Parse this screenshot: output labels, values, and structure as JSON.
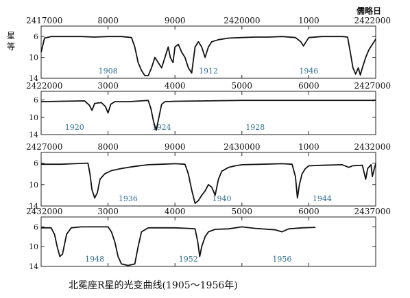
{
  "chart_data": {
    "type": "line",
    "title": "北冕座R星的光变曲线(1905～1956年)",
    "ylabel": "星等",
    "xlabel": "儒略日",
    "ylim": [
      14,
      4
    ],
    "yticks": [
      6,
      10,
      14
    ],
    "grid": false,
    "panels": [
      {
        "id": "p1",
        "xlim": [
          2417000,
          2422000
        ],
        "major_ticks": [
          {
            "x": 2417000,
            "label": "2417000"
          },
          {
            "x": 2420000,
            "label": "2420000"
          },
          {
            "x": 2422000,
            "label": "2422000"
          }
        ],
        "minor_ticks": [
          {
            "x": 2418000,
            "label": "8000"
          },
          {
            "x": 2419000,
            "label": "9000"
          },
          {
            "x": 2421000,
            "label": "1000"
          }
        ],
        "year_labels": [
          {
            "x": 2418000,
            "label": "1908"
          },
          {
            "x": 2419500,
            "label": "1912"
          },
          {
            "x": 2421000,
            "label": "1946"
          }
        ],
        "curve": [
          [
            2417000,
            9
          ],
          [
            2417050,
            6.3
          ],
          [
            2417150,
            6
          ],
          [
            2417400,
            6
          ],
          [
            2417600,
            6
          ],
          [
            2417800,
            6.1
          ],
          [
            2418000,
            6
          ],
          [
            2418200,
            6
          ],
          [
            2418350,
            6.2
          ],
          [
            2418400,
            8
          ],
          [
            2418450,
            11
          ],
          [
            2418500,
            12.5
          ],
          [
            2418550,
            13.5
          ],
          [
            2418600,
            13.5
          ],
          [
            2418650,
            12
          ],
          [
            2418700,
            10
          ],
          [
            2418750,
            11
          ],
          [
            2418800,
            12
          ],
          [
            2418850,
            10
          ],
          [
            2418900,
            8
          ],
          [
            2418930,
            10
          ],
          [
            2418970,
            11
          ],
          [
            2419000,
            8
          ],
          [
            2419050,
            7.5
          ],
          [
            2419100,
            9
          ],
          [
            2419150,
            10
          ],
          [
            2419200,
            12
          ],
          [
            2419250,
            13
          ],
          [
            2419300,
            8
          ],
          [
            2419350,
            7
          ],
          [
            2419400,
            8
          ],
          [
            2419450,
            10
          ],
          [
            2419500,
            8
          ],
          [
            2419550,
            7
          ],
          [
            2419650,
            6.6
          ],
          [
            2419800,
            6.3
          ],
          [
            2420000,
            6.2
          ],
          [
            2420200,
            6.1
          ],
          [
            2420400,
            6.1
          ],
          [
            2420600,
            6
          ],
          [
            2420800,
            6.2
          ],
          [
            2420880,
            7
          ],
          [
            2420920,
            7.8
          ],
          [
            2420960,
            7
          ],
          [
            2421000,
            6.2
          ],
          [
            2421200,
            6
          ],
          [
            2421400,
            6
          ],
          [
            2421500,
            6
          ],
          [
            2421580,
            6.1
          ],
          [
            2421620,
            9
          ],
          [
            2421660,
            12
          ],
          [
            2421700,
            13.2
          ],
          [
            2421740,
            12
          ],
          [
            2421770,
            13.4
          ],
          [
            2421800,
            12
          ],
          [
            2421850,
            10
          ],
          [
            2421900,
            8.5
          ],
          [
            2421950,
            7.5
          ],
          [
            2422000,
            6.5
          ]
        ]
      },
      {
        "id": "p2",
        "xlim": [
          2422000,
          2427000
        ],
        "major_ticks": [
          {
            "x": 2422000,
            "label": "2422000"
          },
          {
            "x": 2427000,
            "label": "2427000"
          }
        ],
        "minor_ticks": [
          {
            "x": 2423000,
            "label": "3000"
          },
          {
            "x": 2424000,
            "label": "4000"
          },
          {
            "x": 2425000,
            "label": "5000"
          },
          {
            "x": 2426000,
            "label": "6000"
          }
        ],
        "year_labels": [
          {
            "x": 2422500,
            "label": "1920"
          },
          {
            "x": 2423800,
            "label": "1924"
          },
          {
            "x": 2425200,
            "label": "1928"
          }
        ],
        "curve": [
          [
            2422000,
            6.4
          ],
          [
            2422300,
            6.3
          ],
          [
            2422650,
            6.2
          ],
          [
            2422720,
            7.2
          ],
          [
            2422760,
            8.4
          ],
          [
            2422800,
            6.8
          ],
          [
            2422900,
            6.6
          ],
          [
            2422960,
            7.5
          ],
          [
            2423000,
            9
          ],
          [
            2423040,
            7
          ],
          [
            2423100,
            6.4
          ],
          [
            2423300,
            6.4
          ],
          [
            2423500,
            6.2
          ],
          [
            2423600,
            6.1
          ],
          [
            2423640,
            8
          ],
          [
            2423680,
            11
          ],
          [
            2423720,
            13
          ],
          [
            2423760,
            10
          ],
          [
            2423800,
            7
          ],
          [
            2423850,
            6.4
          ],
          [
            2424000,
            6.3
          ],
          [
            2424500,
            6.2
          ],
          [
            2425000,
            6.1
          ],
          [
            2425500,
            6.1
          ],
          [
            2426000,
            6.1
          ],
          [
            2426500,
            6.1
          ],
          [
            2427000,
            6.1
          ]
        ]
      },
      {
        "id": "p3",
        "xlim": [
          2427000,
          2432000
        ],
        "major_ticks": [
          {
            "x": 2427000,
            "label": "2427000"
          },
          {
            "x": 2430000,
            "label": "2430000"
          },
          {
            "x": 2432000,
            "label": "2432000"
          }
        ],
        "minor_ticks": [
          {
            "x": 2428000,
            "label": "8000"
          },
          {
            "x": 2429000,
            "label": "9000"
          },
          {
            "x": 2431000,
            "label": "1000"
          }
        ],
        "year_labels": [
          {
            "x": 2428300,
            "label": "1936"
          },
          {
            "x": 2429700,
            "label": "1940"
          },
          {
            "x": 2431200,
            "label": "1944"
          }
        ],
        "curve": [
          [
            2427000,
            6.2
          ],
          [
            2427300,
            6.2
          ],
          [
            2427500,
            6.1
          ],
          [
            2427700,
            6
          ],
          [
            2427730,
            8
          ],
          [
            2427760,
            11
          ],
          [
            2427800,
            12.5
          ],
          [
            2427840,
            11.5
          ],
          [
            2427880,
            9
          ],
          [
            2427950,
            8
          ],
          [
            2428050,
            7.4
          ],
          [
            2428200,
            7
          ],
          [
            2428400,
            6.6
          ],
          [
            2428600,
            6.3
          ],
          [
            2428800,
            6.2
          ],
          [
            2429000,
            6.1
          ],
          [
            2429150,
            6.2
          ],
          [
            2429200,
            8
          ],
          [
            2429250,
            11
          ],
          [
            2429300,
            13.5
          ],
          [
            2429350,
            13
          ],
          [
            2429400,
            12
          ],
          [
            2429450,
            11.2
          ],
          [
            2429500,
            10
          ],
          [
            2429550,
            10.5
          ],
          [
            2429600,
            12
          ],
          [
            2429650,
            9
          ],
          [
            2429700,
            7.5
          ],
          [
            2429800,
            6.8
          ],
          [
            2429900,
            6.5
          ],
          [
            2430000,
            6.3
          ],
          [
            2430300,
            6.2
          ],
          [
            2430600,
            6.1
          ],
          [
            2430750,
            6.2
          ],
          [
            2430800,
            8.5
          ],
          [
            2430830,
            12.5
          ],
          [
            2430860,
            10
          ],
          [
            2430900,
            8
          ],
          [
            2430950,
            7
          ],
          [
            2431000,
            6.5
          ],
          [
            2431200,
            6.4
          ],
          [
            2431500,
            6.3
          ],
          [
            2431600,
            6.8
          ],
          [
            2431650,
            6.5
          ],
          [
            2431800,
            6.4
          ],
          [
            2431850,
            9
          ],
          [
            2431880,
            7
          ],
          [
            2431930,
            6.3
          ],
          [
            2431950,
            8.5
          ],
          [
            2431980,
            7
          ],
          [
            2432000,
            6.1
          ]
        ]
      },
      {
        "id": "p4",
        "xlim": [
          2432000,
          2437000
        ],
        "major_ticks": [
          {
            "x": 2432000,
            "label": "2432000"
          },
          {
            "x": 2437000,
            "label": "2437000"
          }
        ],
        "minor_ticks": [
          {
            "x": 2433000,
            "label": "3000"
          },
          {
            "x": 2434000,
            "label": "4000"
          },
          {
            "x": 2435000,
            "label": "5000"
          },
          {
            "x": 2436000,
            "label": "6000"
          }
        ],
        "year_labels": [
          {
            "x": 2432800,
            "label": "1948"
          },
          {
            "x": 2434200,
            "label": "1952"
          },
          {
            "x": 2435600,
            "label": "1956"
          }
        ],
        "curve": [
          [
            2432000,
            6.2
          ],
          [
            2432150,
            6.2
          ],
          [
            2432200,
            7.5
          ],
          [
            2432240,
            10
          ],
          [
            2432280,
            12
          ],
          [
            2432320,
            11.5
          ],
          [
            2432380,
            7.5
          ],
          [
            2432450,
            6.2
          ],
          [
            2432600,
            6
          ],
          [
            2432800,
            6
          ],
          [
            2433000,
            6
          ],
          [
            2433050,
            7
          ],
          [
            2433100,
            9
          ],
          [
            2433150,
            12
          ],
          [
            2433200,
            13.5
          ],
          [
            2433300,
            13.8
          ],
          [
            2433400,
            13.5
          ],
          [
            2433450,
            10
          ],
          [
            2433500,
            7
          ],
          [
            2433600,
            6.2
          ],
          [
            2433800,
            6.2
          ],
          [
            2434000,
            6.2
          ],
          [
            2434200,
            6.3
          ],
          [
            2434300,
            6.4
          ],
          [
            2434340,
            9
          ],
          [
            2434370,
            12
          ],
          [
            2434400,
            10
          ],
          [
            2434450,
            8
          ],
          [
            2434500,
            7
          ],
          [
            2434600,
            6.5
          ],
          [
            2434800,
            6.4
          ],
          [
            2435000,
            6
          ],
          [
            2435200,
            6.3
          ],
          [
            2435500,
            6.6
          ],
          [
            2435600,
            7
          ],
          [
            2435700,
            6.4
          ],
          [
            2435900,
            6.2
          ],
          [
            2436100,
            6.1
          ]
        ]
      }
    ]
  }
}
